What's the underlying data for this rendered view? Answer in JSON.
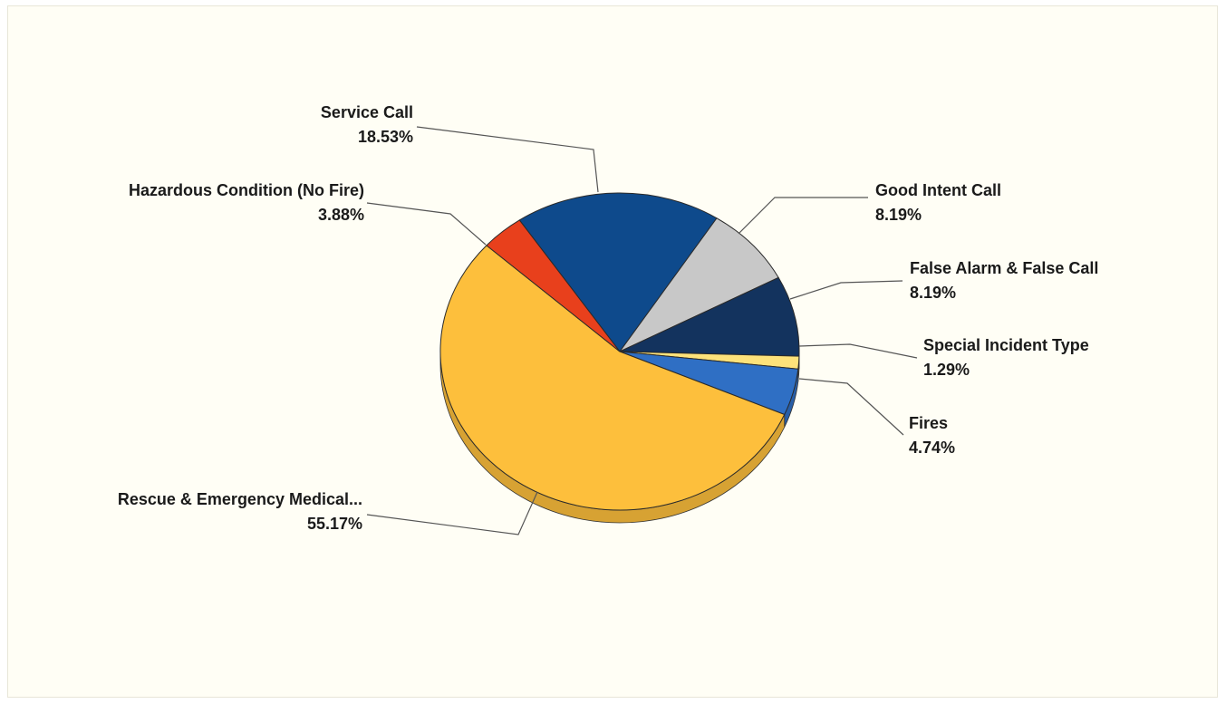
{
  "chart_data": {
    "type": "pie",
    "title": "",
    "slices": [
      {
        "label": "Service Call",
        "value": 18.53,
        "value_label": "18.53%",
        "color": "#0e4a8c"
      },
      {
        "label": "Good Intent Call",
        "value": 8.19,
        "value_label": "8.19%",
        "color": "#c8c8c8"
      },
      {
        "label": "False Alarm & False Call",
        "value": 8.19,
        "value_label": "8.19%",
        "color": "#13335e"
      },
      {
        "label": "Special Incident Type",
        "value": 1.29,
        "value_label": "1.29%",
        "color": "#fde27a"
      },
      {
        "label": "Fires",
        "value": 4.74,
        "value_label": "4.74%",
        "color": "#2f6fc4"
      },
      {
        "label": "Rescue & Emergency Medical...",
        "value": 55.17,
        "value_label": "55.17%",
        "color": "#fdbf3c"
      },
      {
        "label": "Hazardous Condition (No Fire)",
        "value": 3.88,
        "value_label": "3.88%",
        "color": "#e8401c"
      }
    ],
    "legend": "none",
    "style": "3d-tilted"
  }
}
